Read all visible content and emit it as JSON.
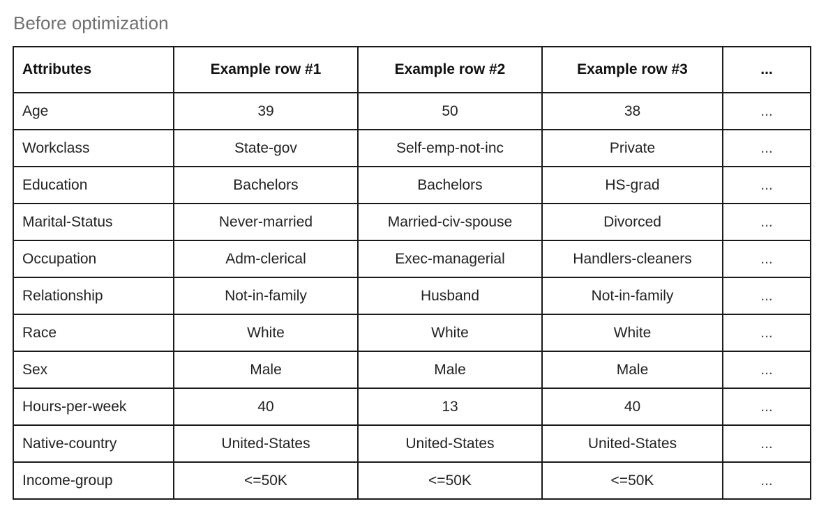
{
  "caption": "Before optimization",
  "table": {
    "headers": [
      "Attributes",
      "Example row #1",
      "Example row #2",
      "Example row #3",
      "..."
    ],
    "rows": [
      [
        "Age",
        "39",
        "50",
        "38",
        "..."
      ],
      [
        "Workclass",
        "State-gov",
        "Self-emp-not-inc",
        "Private",
        "..."
      ],
      [
        "Education",
        "Bachelors",
        "Bachelors",
        "HS-grad",
        "..."
      ],
      [
        "Marital-Status",
        "Never-married",
        "Married-civ-spouse",
        "Divorced",
        "..."
      ],
      [
        "Occupation",
        "Adm-clerical",
        "Exec-managerial",
        "Handlers-cleaners",
        "..."
      ],
      [
        "Relationship",
        "Not-in-family",
        "Husband",
        "Not-in-family",
        "..."
      ],
      [
        "Race",
        "White",
        "White",
        "White",
        "..."
      ],
      [
        "Sex",
        "Male",
        "Male",
        "Male",
        "..."
      ],
      [
        "Hours-per-week",
        "40",
        "13",
        "40",
        "..."
      ],
      [
        "Native-country",
        "United-States",
        "United-States",
        "United-States",
        "..."
      ],
      [
        "Income-group",
        "<=50K",
        "<=50K",
        "<=50K",
        "..."
      ]
    ]
  }
}
